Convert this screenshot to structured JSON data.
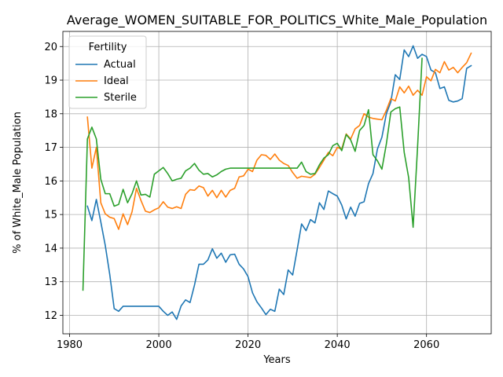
{
  "chart_data": {
    "type": "line",
    "title": "Average_WOMEN_SUITABLE_FOR_POLITICS_White_Male_Population",
    "xlabel": "Years",
    "ylabel": "% of White_Male Population",
    "xlim": [
      1978.5,
      2074.5
    ],
    "ylim": [
      11.45,
      20.45
    ],
    "xticks": [
      1980,
      2000,
      2020,
      2040,
      2060
    ],
    "yticks": [
      12,
      13,
      14,
      15,
      16,
      17,
      18,
      19,
      20
    ],
    "grid": true,
    "legend": {
      "title": "Fertility",
      "placement": "top-left"
    },
    "series": [
      {
        "name": "Actual",
        "color": "#1f77b4",
        "x": [
          1984,
          1985,
          1986,
          1987,
          1988,
          1989,
          1990,
          1991,
          1992,
          1993,
          1994,
          1995,
          1996,
          1997,
          1998,
          1999,
          2000,
          2001,
          2002,
          2003,
          2004,
          2005,
          2006,
          2007,
          2008,
          2009,
          2010,
          2011,
          2012,
          2013,
          2014,
          2015,
          2016,
          2017,
          2018,
          2019,
          2020,
          2021,
          2022,
          2023,
          2024,
          2025,
          2026,
          2027,
          2028,
          2029,
          2030,
          2031,
          2032,
          2033,
          2034,
          2035,
          2036,
          2037,
          2038,
          2039,
          2040,
          2041,
          2042,
          2043,
          2044,
          2045,
          2046,
          2047,
          2048,
          2049,
          2050,
          2051,
          2052,
          2053,
          2054,
          2055,
          2056,
          2057,
          2058,
          2059,
          2060,
          2061,
          2062,
          2063,
          2064,
          2065,
          2066,
          2067,
          2068,
          2069,
          2070
        ],
        "y": [
          15.25,
          14.82,
          15.45,
          14.78,
          14.08,
          13.22,
          12.2,
          12.12,
          12.27,
          12.27,
          12.27,
          12.27,
          12.27,
          12.27,
          12.27,
          12.27,
          12.27,
          12.12,
          12.0,
          12.1,
          11.88,
          12.28,
          12.46,
          12.38,
          12.9,
          13.52,
          13.52,
          13.65,
          13.98,
          13.7,
          13.85,
          13.58,
          13.8,
          13.82,
          13.52,
          13.38,
          13.15,
          12.67,
          12.4,
          12.22,
          12.02,
          12.18,
          12.12,
          12.78,
          12.62,
          13.35,
          13.2,
          13.95,
          14.72,
          14.52,
          14.85,
          14.75,
          15.35,
          15.15,
          15.7,
          15.62,
          15.55,
          15.28,
          14.87,
          15.22,
          14.95,
          15.33,
          15.38,
          15.92,
          16.22,
          16.95,
          17.3,
          18.0,
          18.35,
          19.16,
          19.02,
          19.9,
          19.7,
          20.02,
          19.65,
          19.77,
          19.7,
          19.3,
          19.22,
          18.75,
          18.8,
          18.4,
          18.35,
          18.38,
          18.45,
          19.35,
          19.43
        ]
      },
      {
        "name": "Ideal",
        "color": "#ff7f0e",
        "x": [
          1984,
          1985,
          1986,
          1987,
          1988,
          1989,
          1990,
          1991,
          1992,
          1993,
          1994,
          1995,
          1996,
          1997,
          1998,
          1999,
          2000,
          2001,
          2002,
          2003,
          2004,
          2005,
          2006,
          2007,
          2008,
          2009,
          2010,
          2011,
          2012,
          2013,
          2014,
          2015,
          2016,
          2017,
          2018,
          2019,
          2020,
          2021,
          2022,
          2023,
          2024,
          2025,
          2026,
          2027,
          2028,
          2029,
          2030,
          2031,
          2032,
          2033,
          2034,
          2035,
          2036,
          2037,
          2038,
          2039,
          2040,
          2041,
          2042,
          2043,
          2044,
          2045,
          2046,
          2047,
          2048,
          2049,
          2050,
          2051,
          2052,
          2053,
          2054,
          2055,
          2056,
          2057,
          2058,
          2059,
          2060,
          2061,
          2062,
          2063,
          2064,
          2065,
          2066,
          2067,
          2068,
          2069,
          2070
        ],
        "y": [
          17.9,
          16.38,
          17.0,
          15.35,
          15.02,
          14.92,
          14.88,
          14.56,
          15.02,
          14.7,
          15.08,
          15.78,
          15.42,
          15.1,
          15.06,
          15.14,
          15.2,
          15.38,
          15.22,
          15.18,
          15.23,
          15.18,
          15.6,
          15.74,
          15.72,
          15.85,
          15.8,
          15.55,
          15.72,
          15.5,
          15.72,
          15.52,
          15.72,
          15.78,
          16.12,
          16.15,
          16.35,
          16.28,
          16.62,
          16.78,
          16.76,
          16.64,
          16.8,
          16.62,
          16.52,
          16.46,
          16.25,
          16.08,
          16.14,
          16.12,
          16.1,
          16.2,
          16.4,
          16.62,
          16.85,
          16.75,
          17.0,
          16.95,
          17.4,
          17.25,
          17.55,
          17.65,
          18.0,
          17.9,
          17.86,
          17.84,
          17.82,
          18.1,
          18.45,
          18.38,
          18.8,
          18.62,
          18.82,
          18.55,
          18.7,
          18.55,
          19.1,
          18.98,
          19.32,
          19.22,
          19.55,
          19.3,
          19.38,
          19.22,
          19.38,
          19.52,
          19.8
        ]
      },
      {
        "name": "Sterile",
        "color": "#2ca02c",
        "x": [
          1983,
          1984,
          1985,
          1986,
          1987,
          1988,
          1989,
          1990,
          1991,
          1992,
          1993,
          1994,
          1995,
          1996,
          1997,
          1998,
          1999,
          2000,
          2001,
          2002,
          2003,
          2004,
          2005,
          2006,
          2007,
          2008,
          2009,
          2010,
          2011,
          2012,
          2013,
          2014,
          2015,
          2016,
          2017,
          2018,
          2019,
          2020,
          2021,
          2022,
          2023,
          2024,
          2025,
          2026,
          2027,
          2028,
          2029,
          2030,
          2031,
          2032,
          2033,
          2034,
          2035,
          2036,
          2037,
          2038,
          2039,
          2040,
          2041,
          2042,
          2043,
          2044,
          2045,
          2046,
          2047,
          2048,
          2049,
          2050,
          2051,
          2052,
          2053,
          2054,
          2055,
          2056,
          2057,
          2058,
          2059
        ],
        "y": [
          12.75,
          17.25,
          17.6,
          17.25,
          16.05,
          15.62,
          15.62,
          15.25,
          15.3,
          15.75,
          15.35,
          15.62,
          16.0,
          15.58,
          15.6,
          15.52,
          16.2,
          16.3,
          16.4,
          16.22,
          16.0,
          16.05,
          16.08,
          16.3,
          16.38,
          16.52,
          16.32,
          16.2,
          16.22,
          16.12,
          16.18,
          16.28,
          16.35,
          16.38,
          16.38,
          16.38,
          16.38,
          16.38,
          16.38,
          16.38,
          16.38,
          16.38,
          16.38,
          16.38,
          16.38,
          16.38,
          16.38,
          16.38,
          16.38,
          16.56,
          16.28,
          16.2,
          16.22,
          16.48,
          16.68,
          16.78,
          17.05,
          17.12,
          16.9,
          17.38,
          17.22,
          16.88,
          17.5,
          17.65,
          18.12,
          16.78,
          16.6,
          16.35,
          17.1,
          18.05,
          18.15,
          18.2,
          16.85,
          16.1,
          14.62,
          17.02,
          19.65
        ]
      }
    ]
  }
}
